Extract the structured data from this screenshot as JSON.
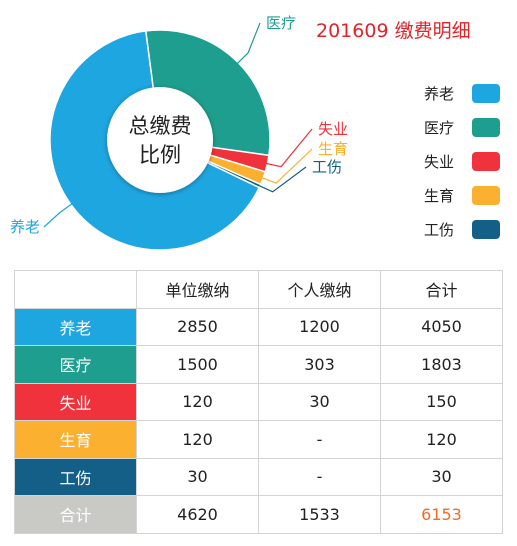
{
  "title": "201609 缴费明细",
  "center_label_line1": "总缴费",
  "center_label_line2": "比例",
  "colors": {
    "pension": "#1ea6e0",
    "medical": "#1e9e8e",
    "unemployment": "#f0323c",
    "maternity": "#fbb030",
    "injury": "#135f87",
    "total_row": "#c9c9c5",
    "total_highlight": "#f26a2a",
    "title": "#e0242b"
  },
  "legend": [
    {
      "label": "养老",
      "color": "#1ea6e0"
    },
    {
      "label": "医疗",
      "color": "#1e9e8e"
    },
    {
      "label": "失业",
      "color": "#f0323c"
    },
    {
      "label": "生育",
      "color": "#fbb030"
    },
    {
      "label": "工伤",
      "color": "#135f87"
    }
  ],
  "table": {
    "headers": [
      "",
      "单位缴纳",
      "个人缴纳",
      "合计"
    ],
    "rows": [
      {
        "label": "养老",
        "color": "#1ea6e0",
        "cells": [
          "2850",
          "1200",
          "4050"
        ]
      },
      {
        "label": "医疗",
        "color": "#1e9e8e",
        "cells": [
          "1500",
          "303",
          "1803"
        ]
      },
      {
        "label": "失业",
        "color": "#f0323c",
        "cells": [
          "120",
          "30",
          "150"
        ]
      },
      {
        "label": "生育",
        "color": "#fbb030",
        "cells": [
          "120",
          "-",
          "120"
        ]
      },
      {
        "label": "工伤",
        "color": "#135f87",
        "cells": [
          "30",
          "-",
          "30"
        ]
      },
      {
        "label": "合计",
        "color": "#c9c9c5",
        "cells": [
          "4620",
          "1533",
          "6153"
        ]
      }
    ]
  },
  "chart_data": {
    "type": "pie",
    "title": "201609 缴费明细",
    "categories": [
      "养老",
      "医疗",
      "失业",
      "生育",
      "工伤"
    ],
    "values": [
      4050,
      1803,
      150,
      120,
      30
    ],
    "colors": [
      "#1ea6e0",
      "#1e9e8e",
      "#f0323c",
      "#fbb030",
      "#135f87"
    ],
    "legend_position": "right"
  }
}
